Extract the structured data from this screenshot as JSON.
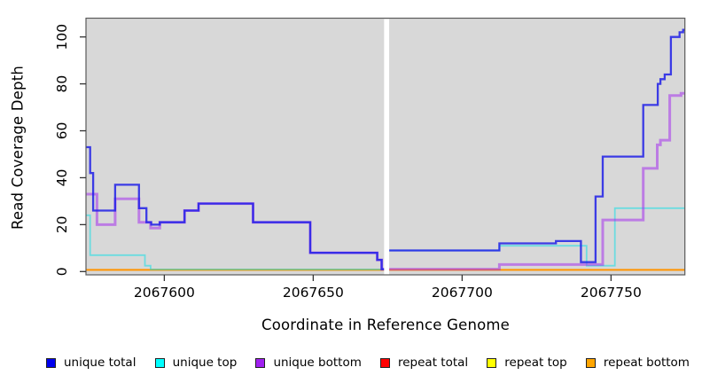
{
  "chart_data": {
    "type": "line",
    "subtype": "step-coverage-plot",
    "title": "",
    "xlabel": "Coordinate in Reference Genome",
    "ylabel": "Read Coverage Depth",
    "x_ticks": [
      2067600,
      2067650,
      2067700,
      2067750
    ],
    "y_ticks": [
      0,
      20,
      40,
      60,
      80,
      100
    ],
    "xlim": [
      2067573.7,
      2067774.8
    ],
    "ylim": [
      -1.4,
      108
    ],
    "grid": "off",
    "plot_bg": "#d8d8d8",
    "outer_bg": "#ffffff",
    "box_color": "#5a5a5a",
    "tick_color": "#333333",
    "gap": {
      "x_start": 2067673.8,
      "x_end": 2067675.5,
      "color": "#ffffff",
      "meaning": "no-data gap"
    },
    "series": [
      {
        "name": "repeat total",
        "color": "#ff0000",
        "alpha": 0.6,
        "width": 1.6,
        "segments": [
          {
            "steps": [
              [
                2067573.8,
                0.7
              ]
            ],
            "x_end": 2067673.8
          },
          {
            "steps": [
              [
                2067675.5,
                0.7
              ]
            ],
            "x_end": 2067774.8
          }
        ]
      },
      {
        "name": "repeat top",
        "color": "#ffe800",
        "alpha": 0.7,
        "width": 1.6,
        "segments": [
          {
            "steps": [
              [
                2067573.8,
                0.7
              ]
            ],
            "x_end": 2067673.8
          },
          {
            "steps": [
              [
                2067675.5,
                0.7
              ]
            ],
            "x_end": 2067774.8
          }
        ]
      },
      {
        "name": "repeat bottom",
        "color": "#ff9100",
        "alpha": 0.95,
        "width": 2.0,
        "segments": [
          {
            "steps": [
              [
                2067573.8,
                0.7
              ]
            ],
            "x_end": 2067673.8
          },
          {
            "steps": [
              [
                2067675.5,
                0.7
              ]
            ],
            "x_end": 2067774.8
          }
        ]
      },
      {
        "name": "unique top",
        "color": "#00dfe8",
        "alpha": 0.5,
        "width": 1.8,
        "segments": [
          {
            "steps": [
              [
                2067573.8,
                24
              ],
              [
                2067575.1,
                7
              ],
              [
                2067593.5,
                2.5
              ],
              [
                2067595.4,
                0.9
              ]
            ],
            "x_end": 2067673.8
          },
          {
            "steps": [
              [
                2067675.5,
                9
              ],
              [
                2067712.5,
                11
              ],
              [
                2067741.8,
                2.5
              ],
              [
                2067751.3,
                27
              ]
            ],
            "x_end": 2067774.8
          }
        ]
      },
      {
        "name": "unique bottom",
        "color": "#a020f0",
        "alpha": 0.5,
        "width": 3.0,
        "segments": [
          {
            "steps": [
              [
                2067573.8,
                33
              ],
              [
                2067577.4,
                20
              ],
              [
                2067583.5,
                31
              ],
              [
                2067591.5,
                21
              ],
              [
                2067595.4,
                18.5
              ],
              [
                2067598.5,
                21
              ],
              [
                2067606.8,
                26
              ],
              [
                2067611.5,
                29
              ],
              [
                2067629.8,
                21
              ],
              [
                2067649,
                8
              ],
              [
                2067671.5,
                5
              ],
              [
                2067673,
                1
              ]
            ],
            "x_end": 2067673.8
          },
          {
            "steps": [
              [
                2067675.5,
                1
              ],
              [
                2067712.5,
                3
              ],
              [
                2067747.2,
                22
              ],
              [
                2067760.8,
                44
              ],
              [
                2067765.5,
                54
              ],
              [
                2067766.6,
                56
              ],
              [
                2067769.7,
                75
              ],
              [
                2067773.5,
                76
              ]
            ],
            "x_end": 2067774.8
          }
        ]
      },
      {
        "name": "unique total",
        "color": "#2020e8",
        "alpha": 0.85,
        "width": 2.3,
        "segments": [
          {
            "steps": [
              [
                2067573.8,
                53
              ],
              [
                2067575.1,
                42
              ],
              [
                2067576.1,
                26
              ],
              [
                2067583.5,
                37
              ],
              [
                2067591.5,
                27
              ],
              [
                2067594,
                21
              ],
              [
                2067595.6,
                20
              ],
              [
                2067598.5,
                21
              ],
              [
                2067606.8,
                26
              ],
              [
                2067611.5,
                29
              ],
              [
                2067629.8,
                21
              ],
              [
                2067649,
                8
              ],
              [
                2067671.5,
                5
              ],
              [
                2067673,
                1
              ]
            ],
            "x_end": 2067673.8
          },
          {
            "steps": [
              [
                2067675.5,
                9
              ],
              [
                2067712.5,
                12
              ],
              [
                2067731.5,
                13
              ],
              [
                2067739.9,
                4
              ],
              [
                2067744.8,
                32
              ],
              [
                2067747.2,
                49
              ],
              [
                2067760.8,
                71
              ],
              [
                2067765.7,
                80
              ],
              [
                2067766.6,
                82
              ],
              [
                2067768,
                84
              ],
              [
                2067770.1,
                100
              ],
              [
                2067773,
                102
              ],
              [
                2067774.2,
                103
              ]
            ],
            "x_end": 2067774.8
          }
        ]
      }
    ],
    "legend": {
      "position": "bottom",
      "entries": [
        {
          "label": "unique total",
          "color": "#0000ee"
        },
        {
          "label": "unique top",
          "color": "#00ffff"
        },
        {
          "label": "unique bottom",
          "color": "#a020f0"
        },
        {
          "label": "repeat total",
          "color": "#ff0000"
        },
        {
          "label": "repeat top",
          "color": "#ffff00"
        },
        {
          "label": "repeat bottom",
          "color": "#ffa500"
        }
      ]
    }
  }
}
